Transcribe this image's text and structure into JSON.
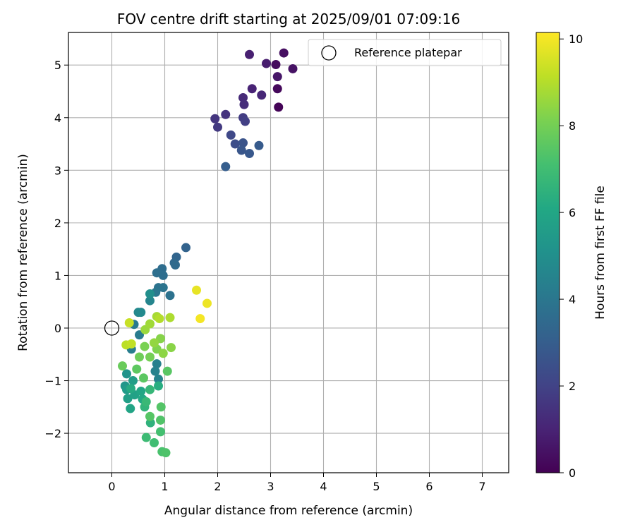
{
  "chart_data": {
    "type": "scatter",
    "title": "FOV centre drift starting at 2025/09/01 07:09:16",
    "xlabel": "Angular distance from reference (arcmin)",
    "ylabel": "Rotation from reference (arcmin)",
    "xlim": [
      -0.82,
      7.5
    ],
    "ylim": [
      -2.75,
      5.62
    ],
    "xticks": [
      0,
      1,
      2,
      3,
      4,
      5,
      6,
      7
    ],
    "yticks": [
      -2,
      -1,
      0,
      1,
      2,
      3,
      4,
      5
    ],
    "grid": true,
    "legend": {
      "placement": "top-right",
      "entries": [
        "Reference platepar"
      ]
    },
    "reference_point": {
      "name": "Reference platepar",
      "x": 0,
      "y": 0
    },
    "colorbar": {
      "label": "Hours from first FF file",
      "range": [
        0,
        10.15
      ],
      "ticks": [
        0,
        2,
        4,
        6,
        8,
        10
      ],
      "colormap": "viridis"
    },
    "points": [
      {
        "x": 3.15,
        "y": 4.2,
        "h": 0.1
      },
      {
        "x": 3.13,
        "y": 4.55,
        "h": 0.2
      },
      {
        "x": 3.1,
        "y": 5.01,
        "h": 0.3
      },
      {
        "x": 3.25,
        "y": 5.23,
        "h": 0.4
      },
      {
        "x": 3.42,
        "y": 4.93,
        "h": 0.5
      },
      {
        "x": 3.13,
        "y": 4.78,
        "h": 0.6
      },
      {
        "x": 2.92,
        "y": 5.03,
        "h": 0.8
      },
      {
        "x": 2.6,
        "y": 5.2,
        "h": 0.9
      },
      {
        "x": 2.65,
        "y": 4.55,
        "h": 1.0
      },
      {
        "x": 2.83,
        "y": 4.43,
        "h": 1.1
      },
      {
        "x": 2.48,
        "y": 4.38,
        "h": 1.2
      },
      {
        "x": 2.5,
        "y": 4.25,
        "h": 1.3
      },
      {
        "x": 2.15,
        "y": 4.06,
        "h": 1.5
      },
      {
        "x": 1.95,
        "y": 3.98,
        "h": 1.6
      },
      {
        "x": 2.0,
        "y": 3.82,
        "h": 1.7
      },
      {
        "x": 2.48,
        "y": 4.0,
        "h": 1.8
      },
      {
        "x": 2.52,
        "y": 3.93,
        "h": 1.9
      },
      {
        "x": 2.25,
        "y": 3.67,
        "h": 2.2
      },
      {
        "x": 2.33,
        "y": 3.5,
        "h": 2.4
      },
      {
        "x": 2.48,
        "y": 3.52,
        "h": 2.6
      },
      {
        "x": 2.45,
        "y": 3.38,
        "h": 2.7
      },
      {
        "x": 2.6,
        "y": 3.32,
        "h": 2.8
      },
      {
        "x": 2.78,
        "y": 3.47,
        "h": 2.9
      },
      {
        "x": 2.15,
        "y": 3.07,
        "h": 3.0
      },
      {
        "x": 1.4,
        "y": 1.53,
        "h": 3.2
      },
      {
        "x": 1.22,
        "y": 1.35,
        "h": 3.3
      },
      {
        "x": 1.18,
        "y": 1.24,
        "h": 3.4
      },
      {
        "x": 1.2,
        "y": 1.2,
        "h": 3.5
      },
      {
        "x": 0.95,
        "y": 1.13,
        "h": 3.6
      },
      {
        "x": 0.97,
        "y": 1.0,
        "h": 3.65
      },
      {
        "x": 0.85,
        "y": 1.05,
        "h": 3.7
      },
      {
        "x": 1.1,
        "y": 0.62,
        "h": 3.8
      },
      {
        "x": 0.88,
        "y": 0.77,
        "h": 3.85
      },
      {
        "x": 0.97,
        "y": 0.77,
        "h": 3.9
      },
      {
        "x": 0.83,
        "y": 0.68,
        "h": 4.0
      },
      {
        "x": 0.42,
        "y": 0.07,
        "h": 4.1
      },
      {
        "x": 0.52,
        "y": -0.13,
        "h": 4.2
      },
      {
        "x": 0.37,
        "y": -0.4,
        "h": 4.3
      },
      {
        "x": 0.85,
        "y": -0.68,
        "h": 4.4
      },
      {
        "x": 0.82,
        "y": -0.82,
        "h": 4.45
      },
      {
        "x": 0.88,
        "y": -0.97,
        "h": 4.5
      },
      {
        "x": 0.72,
        "y": 0.52,
        "h": 4.6
      },
      {
        "x": 0.5,
        "y": 0.3,
        "h": 4.7
      },
      {
        "x": 0.55,
        "y": 0.3,
        "h": 4.8
      },
      {
        "x": 0.72,
        "y": 0.65,
        "h": 5.0
      },
      {
        "x": 0.28,
        "y": -0.87,
        "h": 5.2
      },
      {
        "x": 0.25,
        "y": -1.1,
        "h": 5.3
      },
      {
        "x": 0.28,
        "y": -1.17,
        "h": 5.5
      },
      {
        "x": 0.4,
        "y": -1.0,
        "h": 5.6
      },
      {
        "x": 0.3,
        "y": -1.34,
        "h": 5.7
      },
      {
        "x": 0.43,
        "y": -1.27,
        "h": 5.8
      },
      {
        "x": 0.35,
        "y": -1.53,
        "h": 5.9
      },
      {
        "x": 0.55,
        "y": -1.2,
        "h": 6.0
      },
      {
        "x": 0.58,
        "y": -1.35,
        "h": 6.1
      },
      {
        "x": 0.36,
        "y": -1.15,
        "h": 6.2
      },
      {
        "x": 0.88,
        "y": -1.1,
        "h": 6.3
      },
      {
        "x": 0.73,
        "y": -1.8,
        "h": 6.5
      },
      {
        "x": 0.62,
        "y": -1.5,
        "h": 6.6
      },
      {
        "x": 0.72,
        "y": -1.17,
        "h": 6.7
      },
      {
        "x": 0.65,
        "y": -1.4,
        "h": 6.8
      },
      {
        "x": 0.65,
        "y": -2.08,
        "h": 6.9
      },
      {
        "x": 0.8,
        "y": -2.18,
        "h": 7.0
      },
      {
        "x": 0.92,
        "y": -1.97,
        "h": 7.1
      },
      {
        "x": 0.95,
        "y": -2.35,
        "h": 7.2
      },
      {
        "x": 1.02,
        "y": -2.37,
        "h": 7.3
      },
      {
        "x": 0.92,
        "y": -1.75,
        "h": 7.35
      },
      {
        "x": 0.93,
        "y": -1.5,
        "h": 7.4
      },
      {
        "x": 0.72,
        "y": -1.68,
        "h": 7.45
      },
      {
        "x": 1.05,
        "y": -0.82,
        "h": 7.5
      },
      {
        "x": 0.6,
        "y": -0.95,
        "h": 7.55
      },
      {
        "x": 0.47,
        "y": -0.78,
        "h": 7.6
      },
      {
        "x": 0.2,
        "y": -0.72,
        "h": 7.8
      },
      {
        "x": 0.52,
        "y": -0.55,
        "h": 7.9
      },
      {
        "x": 0.72,
        "y": -0.55,
        "h": 8.0
      },
      {
        "x": 0.62,
        "y": -0.35,
        "h": 8.1
      },
      {
        "x": 0.85,
        "y": -0.4,
        "h": 8.2
      },
      {
        "x": 0.92,
        "y": -0.2,
        "h": 8.3
      },
      {
        "x": 1.12,
        "y": -0.37,
        "h": 8.35
      },
      {
        "x": 0.97,
        "y": -0.48,
        "h": 8.4
      },
      {
        "x": 0.8,
        "y": -0.28,
        "h": 8.5
      },
      {
        "x": 0.63,
        "y": -0.03,
        "h": 8.6
      },
      {
        "x": 0.72,
        "y": 0.08,
        "h": 8.7
      },
      {
        "x": 0.85,
        "y": 0.22,
        "h": 8.8
      },
      {
        "x": 1.1,
        "y": 0.2,
        "h": 8.9
      },
      {
        "x": 0.9,
        "y": 0.18,
        "h": 9.0
      },
      {
        "x": 0.27,
        "y": -0.32,
        "h": 9.1
      },
      {
        "x": 0.37,
        "y": -0.3,
        "h": 9.2
      },
      {
        "x": 0.33,
        "y": 0.1,
        "h": 9.3
      },
      {
        "x": 1.6,
        "y": 0.72,
        "h": 9.8
      },
      {
        "x": 1.8,
        "y": 0.47,
        "h": 9.9
      },
      {
        "x": 1.67,
        "y": 0.18,
        "h": 10.0
      }
    ]
  }
}
